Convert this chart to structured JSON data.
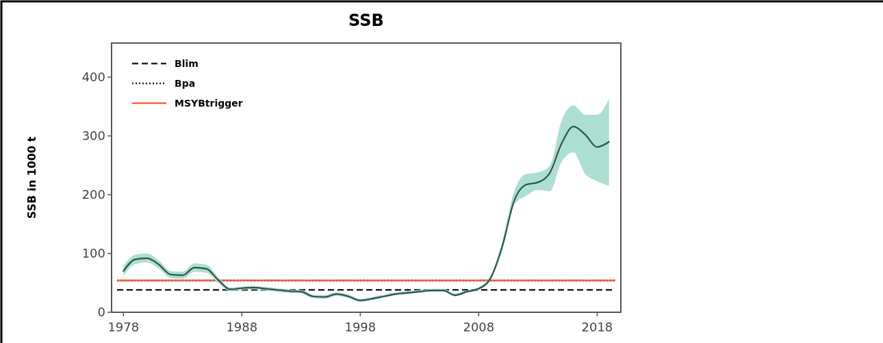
{
  "chart_data": {
    "type": "line",
    "title": "SSB",
    "ylabel": "SSB in 1000 t",
    "x": [
      1978,
      1979,
      1980,
      1981,
      1982,
      1983,
      1984,
      1985,
      1986,
      1987,
      1988,
      1989,
      1990,
      1991,
      1992,
      1993,
      1994,
      1995,
      1996,
      1997,
      1998,
      1999,
      2000,
      2001,
      2002,
      2003,
      2004,
      2005,
      2006,
      2007,
      2008,
      2009,
      2010,
      2011,
      2012,
      2013,
      2014,
      2015,
      2016,
      2017,
      2018,
      2019
    ],
    "series": [
      {
        "color": "#2e5349",
        "values": [
          70,
          90,
          92,
          81,
          64,
          63,
          76,
          74,
          55,
          39,
          41,
          42,
          40,
          38,
          36,
          35,
          27,
          26,
          31,
          27,
          20,
          23,
          27,
          31,
          33,
          35,
          37,
          37,
          29,
          35,
          40,
          58,
          113,
          190,
          217,
          221,
          237,
          287,
          316,
          302,
          281,
          290
        ],
        "lower": [
          62,
          82,
          85,
          74,
          58,
          57,
          69,
          67,
          50,
          36,
          38,
          39,
          37,
          35,
          33,
          32,
          24,
          23,
          28,
          24,
          18,
          21,
          25,
          29,
          31,
          33,
          35,
          35,
          27,
          33,
          38,
          55,
          105,
          183,
          198,
          208,
          206,
          256,
          272,
          235,
          223,
          215
        ],
        "upper": [
          79,
          98,
          100,
          88,
          70,
          69,
          83,
          81,
          60,
          42,
          44,
          45,
          43,
          41,
          39,
          38,
          30,
          29,
          34,
          30,
          23,
          26,
          30,
          34,
          36,
          38,
          40,
          40,
          32,
          37,
          43,
          62,
          121,
          206,
          235,
          238,
          249,
          326,
          352,
          336,
          336,
          363
        ]
      }
    ],
    "ref_lines": [
      {
        "axis": "y",
        "value": 38,
        "label": "Blim",
        "color": "#222222",
        "line_style": "dashed"
      },
      {
        "axis": "y",
        "value": 54,
        "label": "Bpa",
        "color": "#222222",
        "line_style": "dotted"
      },
      {
        "axis": "y",
        "value": 54,
        "label": "MSYBtrigger",
        "color": "#f0643c",
        "line_style": "solid"
      }
    ],
    "xlim": [
      1977,
      2020
    ],
    "xticks": [
      1978,
      1988,
      1998,
      2008,
      2018
    ],
    "ylim": [
      0,
      458
    ],
    "yticks": [
      0,
      100,
      200,
      300,
      400
    ],
    "legend": "top left",
    "grid": false,
    "marker": "none"
  }
}
